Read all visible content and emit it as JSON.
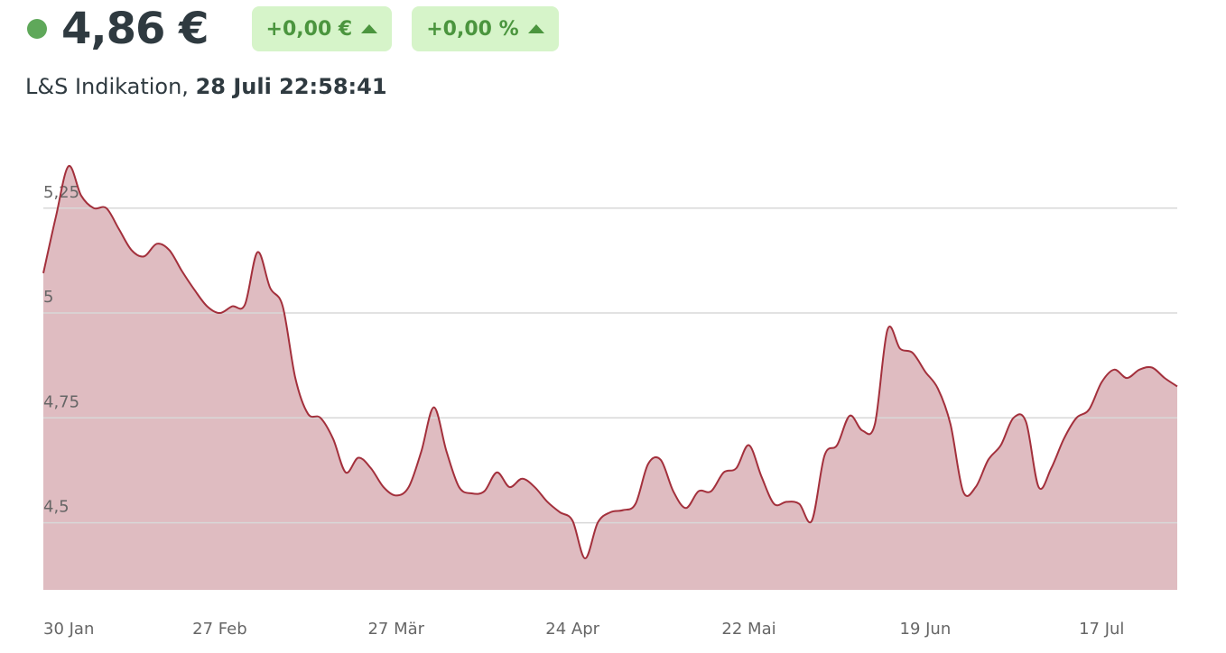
{
  "header": {
    "price": "4,86 €",
    "change_abs": "+0,00 €",
    "change_pct": "+0,00 %",
    "source": "L&S Indikation,",
    "timestamp": "28 Juli 22:58:41"
  },
  "chart_data": {
    "type": "area",
    "categories": [
      "30 Jan",
      null,
      null,
      null,
      null,
      null,
      null,
      null,
      null,
      null,
      null,
      null,
      null,
      null,
      "27 Feb",
      null,
      null,
      null,
      null,
      null,
      null,
      null,
      null,
      null,
      null,
      null,
      null,
      null,
      "27 Mär",
      null,
      null,
      null,
      null,
      null,
      null,
      null,
      null,
      null,
      null,
      null,
      null,
      null,
      "24 Apr",
      null,
      null,
      null,
      null,
      null,
      null,
      null,
      null,
      null,
      null,
      null,
      null,
      null,
      "22 Mai",
      null,
      null,
      null,
      null,
      null,
      null,
      null,
      null,
      null,
      null,
      null,
      null,
      null,
      "19 Jun",
      null,
      null,
      null,
      null,
      null,
      null,
      null,
      null,
      null,
      null,
      null,
      null,
      null,
      "17 Jul",
      null,
      null,
      null,
      null,
      null,
      null
    ],
    "values": [
      5.095,
      5.23,
      5.35,
      5.28,
      5.25,
      5.25,
      5.2,
      5.15,
      5.135,
      5.165,
      5.15,
      5.1,
      5.055,
      5.016,
      5.0,
      5.016,
      5.02,
      5.145,
      5.06,
      5.016,
      4.845,
      4.76,
      4.75,
      4.7,
      4.62,
      4.655,
      4.63,
      4.585,
      4.565,
      4.585,
      4.67,
      4.775,
      4.67,
      4.585,
      4.57,
      4.575,
      4.62,
      4.585,
      4.605,
      4.585,
      4.55,
      4.525,
      4.505,
      4.415,
      4.5,
      4.525,
      4.53,
      4.545,
      4.64,
      4.65,
      4.575,
      4.535,
      4.575,
      4.575,
      4.62,
      4.63,
      4.685,
      4.61,
      4.545,
      4.55,
      4.545,
      4.505,
      4.66,
      4.685,
      4.755,
      4.72,
      4.735,
      4.96,
      4.915,
      4.905,
      4.86,
      4.82,
      4.735,
      4.575,
      4.585,
      4.65,
      4.685,
      4.75,
      4.74,
      4.585,
      4.63,
      4.7,
      4.75,
      4.77,
      4.835,
      4.865,
      4.845,
      4.865,
      4.87,
      4.845,
      4.825
    ],
    "line_color": "#a3303c",
    "fill_color": "#dfbcc1",
    "ylim": [
      4.34,
      5.4
    ],
    "yticks": [
      {
        "value": 4.5,
        "label": "4,5"
      },
      {
        "value": 4.75,
        "label": "4,75"
      },
      5,
      {
        "value": 5.25,
        "label": "5,25"
      }
    ],
    "grid": true
  }
}
